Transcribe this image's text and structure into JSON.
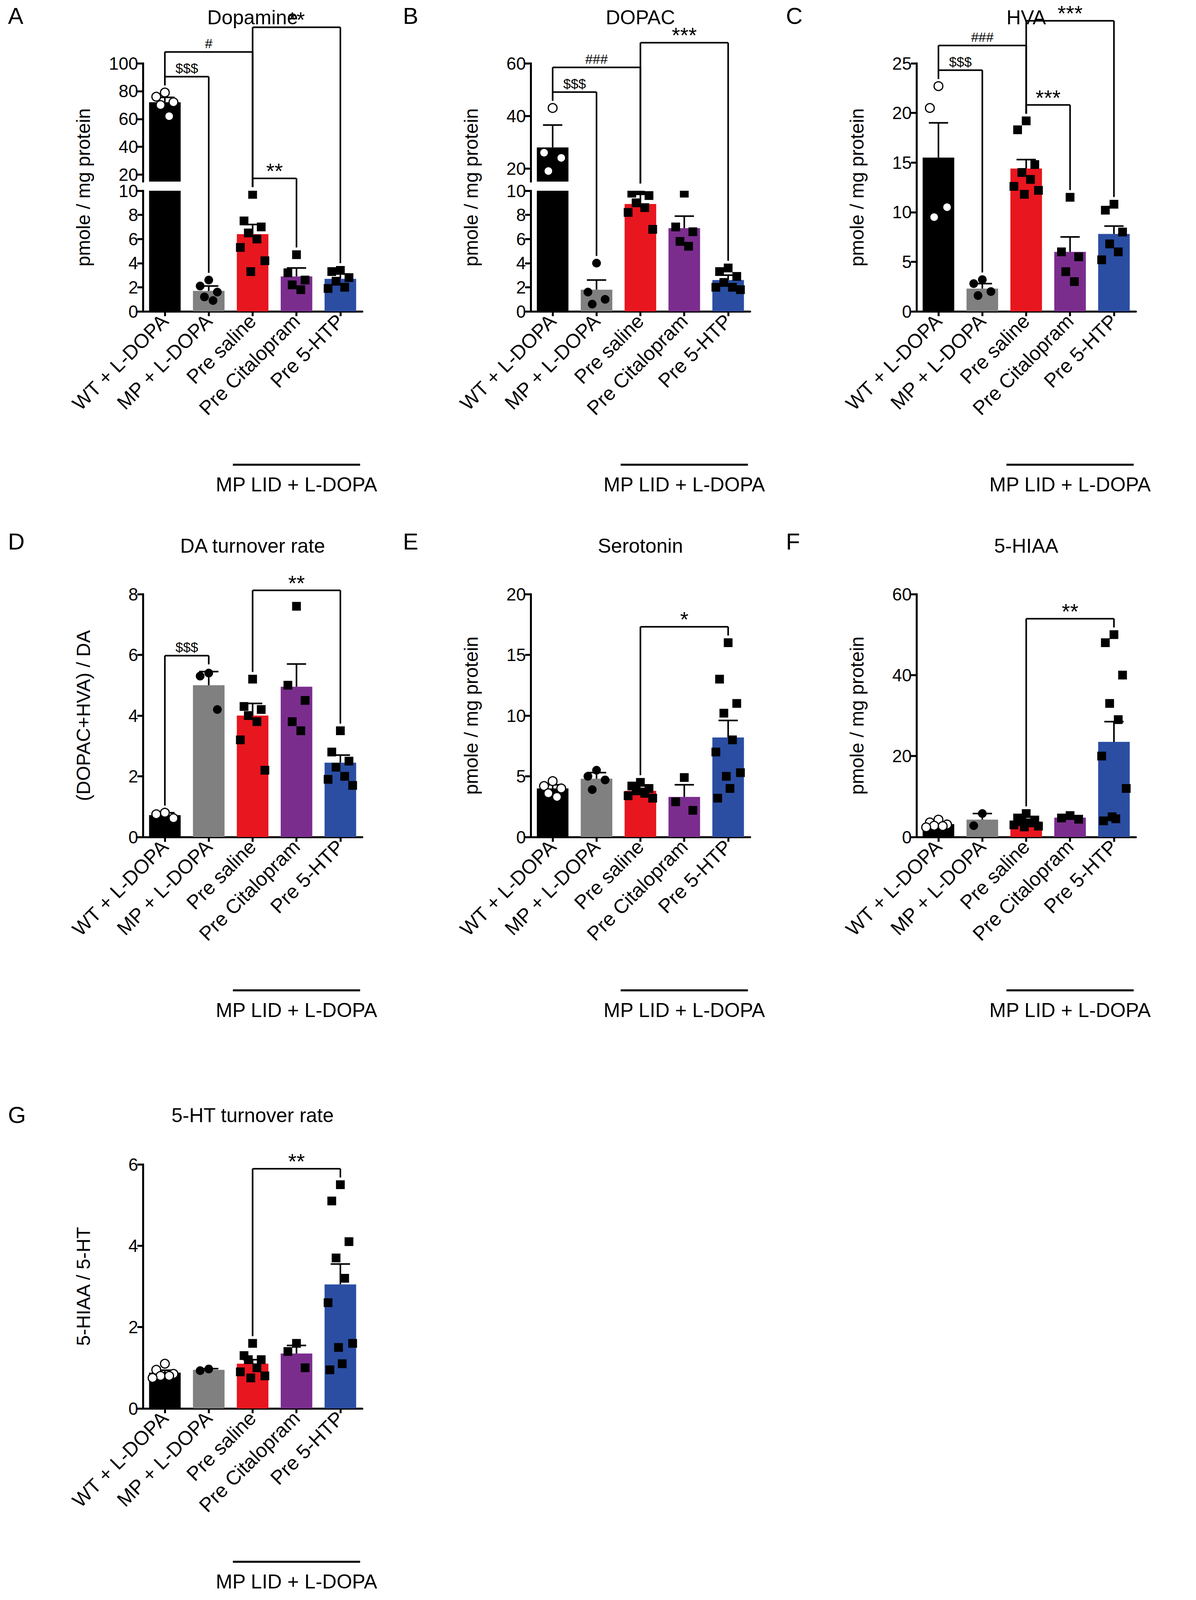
{
  "chart_data": [
    {
      "type": "bar",
      "panel_label": "A",
      "title": "Dopamine",
      "y_label": "pmole / mg protein",
      "categories": [
        "WT + L-DOPA",
        "MP + L-DOPA",
        "Pre saline",
        "Pre Citalopram",
        "Pre 5-HTP"
      ],
      "values": [
        72,
        1.7,
        6.4,
        2.9,
        2.7
      ],
      "errors": [
        3.5,
        0.4,
        0.8,
        0.7,
        0.4
      ],
      "points": [
        [
          79,
          76,
          72,
          70,
          62
        ],
        [
          2.6,
          2.1,
          1.6,
          1.2,
          0.9
        ],
        [
          9.7,
          7.5,
          7.0,
          6.5,
          6.0,
          5.3,
          4.2,
          3.3
        ],
        [
          4.7,
          3.2,
          2.6,
          2.2,
          1.8
        ],
        [
          3.4,
          3.3,
          2.8,
          2.5,
          2.0,
          1.9
        ]
      ],
      "colors": [
        "#000000",
        "#808080",
        "#e8161f",
        "#7b2d8e",
        "#2b4ea2"
      ],
      "markers": [
        "open_circle",
        "circle",
        "square",
        "square",
        "square"
      ],
      "group_label": "MP LID + L-DOPA",
      "group_categories": [
        "Pre saline",
        "Pre Citalopram",
        "Pre 5-HTP"
      ],
      "ylim": [
        0,
        100
      ],
      "yticks": [
        0,
        2,
        4,
        6,
        8,
        10,
        20,
        40,
        60,
        80,
        100
      ],
      "y_break": [
        10,
        15
      ],
      "annotations": [
        {
          "from": "WT + L-DOPA",
          "to": "MP + L-DOPA",
          "text": "$$$"
        },
        {
          "from": "WT + L-DOPA",
          "to": "Pre saline",
          "text": "#"
        },
        {
          "from": "Pre saline",
          "to": "Pre Citalopram",
          "text": "**"
        },
        {
          "from": "Pre saline",
          "to": "Pre 5-HTP",
          "text": "**"
        }
      ],
      "grid": false
    },
    {
      "type": "bar",
      "panel_label": "B",
      "title": "DOPAC",
      "y_label": "pmole / mg protein",
      "categories": [
        "WT + L-DOPA",
        "MP + L-DOPA",
        "Pre saline",
        "Pre Citalopram",
        "Pre 5-HTP"
      ],
      "values": [
        28,
        1.8,
        8.9,
        6.9,
        2.6
      ],
      "errors": [
        8.5,
        0.8,
        0.9,
        1.0,
        0.4
      ],
      "points": [
        [
          43,
          26,
          24,
          19
        ],
        [
          4.0,
          1.6,
          1.0,
          0.6
        ],
        [
          10.0,
          9.8,
          9.6,
          9.0,
          8.6,
          8.2,
          6.8
        ],
        [
          9.8,
          7.0,
          6.6,
          5.8,
          5.4
        ],
        [
          3.6,
          3.3,
          2.9,
          2.4,
          2.0,
          2.0,
          1.8
        ]
      ],
      "colors": [
        "#000000",
        "#808080",
        "#e8161f",
        "#7b2d8e",
        "#2b4ea2"
      ],
      "markers": [
        "open_circle",
        "circle",
        "square",
        "square",
        "square"
      ],
      "group_label": "MP LID + L-DOPA",
      "group_categories": [
        "Pre saline",
        "Pre Citalopram",
        "Pre 5-HTP"
      ],
      "ylim": [
        0,
        60
      ],
      "yticks": [
        0,
        2,
        4,
        6,
        8,
        10,
        20,
        40,
        60
      ],
      "y_break": [
        10,
        15
      ],
      "annotations": [
        {
          "from": "WT + L-DOPA",
          "to": "MP + L-DOPA",
          "text": "$$$"
        },
        {
          "from": "WT + L-DOPA",
          "to": "Pre saline",
          "text": "###"
        },
        {
          "from": "Pre saline",
          "to": "Pre 5-HTP",
          "text": "***"
        }
      ],
      "grid": false
    },
    {
      "type": "bar",
      "panel_label": "C",
      "title": "HVA",
      "y_label": "pmole / mg protein",
      "categories": [
        "WT + L-DOPA",
        "MP + L-DOPA",
        "Pre saline",
        "Pre Citalopram",
        "Pre 5-HTP"
      ],
      "values": [
        15.5,
        2.3,
        14.4,
        6.0,
        7.8
      ],
      "errors": [
        3.5,
        0.5,
        0.9,
        1.5,
        0.8
      ],
      "points": [
        [
          22.7,
          20.5,
          10.5,
          9.5
        ],
        [
          3.2,
          2.8,
          2.0,
          1.6
        ],
        [
          19.2,
          18.3,
          14.8,
          14.0,
          13.3,
          12.6,
          12.2,
          11.8
        ],
        [
          11.5,
          6.0,
          5.5,
          4.0,
          3.0
        ],
        [
          10.8,
          10.2,
          8.0,
          6.8,
          6.0,
          5.2
        ]
      ],
      "colors": [
        "#000000",
        "#808080",
        "#e8161f",
        "#7b2d8e",
        "#2b4ea2"
      ],
      "markers": [
        "open_circle",
        "circle",
        "square",
        "square",
        "square"
      ],
      "group_label": "MP LID + L-DOPA",
      "group_categories": [
        "Pre saline",
        "Pre Citalopram",
        "Pre 5-HTP"
      ],
      "ylim": [
        0,
        25
      ],
      "yticks": [
        0,
        5,
        10,
        15,
        20,
        25
      ],
      "annotations": [
        {
          "from": "WT + L-DOPA",
          "to": "MP + L-DOPA",
          "text": "$$$"
        },
        {
          "from": "WT + L-DOPA",
          "to": "Pre saline",
          "text": "###"
        },
        {
          "from": "Pre saline",
          "to": "Pre Citalopram",
          "text": "***"
        },
        {
          "from": "Pre saline",
          "to": "Pre 5-HTP",
          "text": "***"
        }
      ],
      "grid": false
    },
    {
      "type": "bar",
      "panel_label": "D",
      "title": "DA turnover rate",
      "y_label": "(DOPAC+HVA) / DA",
      "categories": [
        "WT + L-DOPA",
        "MP + L-DOPA",
        "Pre saline",
        "Pre Citalopram",
        "Pre 5-HTP"
      ],
      "values": [
        0.72,
        5.0,
        4.0,
        4.95,
        2.45
      ],
      "errors": [
        0.08,
        0.45,
        0.4,
        0.75,
        0.25
      ],
      "points": [
        [
          0.8,
          0.75,
          0.62
        ],
        [
          5.4,
          5.3,
          4.2
        ],
        [
          5.2,
          4.3,
          4.2,
          4.0,
          3.8,
          3.2,
          2.2
        ],
        [
          7.6,
          5.0,
          4.5,
          3.8,
          3.5
        ],
        [
          3.5,
          2.8,
          2.5,
          2.3,
          2.0,
          1.9,
          1.7
        ]
      ],
      "colors": [
        "#000000",
        "#808080",
        "#e8161f",
        "#7b2d8e",
        "#2b4ea2"
      ],
      "markers": [
        "open_circle",
        "circle",
        "square",
        "square",
        "square"
      ],
      "group_label": "MP LID + L-DOPA",
      "group_categories": [
        "Pre saline",
        "Pre Citalopram",
        "Pre 5-HTP"
      ],
      "ylim": [
        0,
        8
      ],
      "yticks": [
        0,
        2,
        4,
        6,
        8
      ],
      "annotations": [
        {
          "from": "WT + L-DOPA",
          "to": "MP + L-DOPA",
          "text": "$$$"
        },
        {
          "from": "Pre saline",
          "to": "Pre 5-HTP",
          "text": "**"
        }
      ],
      "grid": false
    },
    {
      "type": "bar",
      "panel_label": "E",
      "title": "Serotonin",
      "y_label": "pmole / mg protein",
      "categories": [
        "WT + L-DOPA",
        "MP + L-DOPA",
        "Pre saline",
        "Pre Citalopram",
        "Pre 5-HTP"
      ],
      "values": [
        4.0,
        4.8,
        3.8,
        3.3,
        8.2
      ],
      "errors": [
        0.3,
        0.5,
        0.2,
        1.0,
        1.4
      ],
      "points": [
        [
          4.6,
          4.2,
          4.0,
          3.6,
          3.3
        ],
        [
          5.5,
          5.0,
          4.7,
          3.9
        ],
        [
          4.5,
          4.2,
          4.0,
          3.8,
          3.6,
          3.4,
          3.2
        ],
        [
          4.9,
          2.9,
          2.2
        ],
        [
          16.0,
          13.0,
          11.0,
          10.2,
          8.0,
          7.0,
          5.3,
          5.0,
          4.0,
          3.2
        ]
      ],
      "colors": [
        "#000000",
        "#808080",
        "#e8161f",
        "#7b2d8e",
        "#2b4ea2"
      ],
      "markers": [
        "open_circle",
        "circle",
        "square",
        "square",
        "square"
      ],
      "group_label": "MP LID + L-DOPA",
      "group_categories": [
        "Pre saline",
        "Pre Citalopram",
        "Pre 5-HTP"
      ],
      "ylim": [
        0,
        20
      ],
      "yticks": [
        0,
        5,
        10,
        15,
        20
      ],
      "annotations": [
        {
          "from": "Pre saline",
          "to": "Pre 5-HTP",
          "text": "*"
        }
      ],
      "grid": false
    },
    {
      "type": "bar",
      "panel_label": "F",
      "title": "5-HIAA",
      "y_label": "pmole / mg protein",
      "categories": [
        "WT + L-DOPA",
        "MP + L-DOPA",
        "Pre saline",
        "Pre Citalopram",
        "Pre 5-HTP"
      ],
      "values": [
        3.2,
        4.3,
        3.8,
        4.8,
        23.5
      ],
      "errors": [
        0.4,
        1.5,
        0.4,
        0.3,
        5.0
      ],
      "points": [
        [
          4.3,
          3.6,
          3.1,
          2.8,
          2.7,
          2.4
        ],
        [
          5.8,
          2.8
        ],
        [
          5.8,
          4.7,
          4.2,
          3.8,
          3.5,
          3.0,
          2.7,
          2.5
        ],
        [
          5.3,
          4.7,
          4.4
        ],
        [
          50,
          48,
          40,
          33,
          29,
          20,
          12,
          5,
          4.5,
          4.0
        ]
      ],
      "colors": [
        "#000000",
        "#808080",
        "#e8161f",
        "#7b2d8e",
        "#2b4ea2"
      ],
      "markers": [
        "open_circle",
        "circle",
        "square",
        "square",
        "square"
      ],
      "group_label": "MP LID + L-DOPA",
      "group_categories": [
        "Pre saline",
        "Pre Citalopram",
        "Pre 5-HTP"
      ],
      "ylim": [
        0,
        60
      ],
      "yticks": [
        0,
        20,
        40,
        60
      ],
      "annotations": [
        {
          "from": "Pre saline",
          "to": "Pre 5-HTP",
          "text": "**"
        }
      ],
      "grid": false
    },
    {
      "type": "bar",
      "panel_label": "G",
      "title": "5-HT turnover rate",
      "y_label": "5-HIAA / 5-HT",
      "categories": [
        "WT + L-DOPA",
        "MP + L-DOPA",
        "Pre saline",
        "Pre Citalopram",
        "Pre 5-HTP"
      ],
      "values": [
        0.88,
        0.95,
        1.1,
        1.35,
        3.05
      ],
      "errors": [
        0.06,
        0.03,
        0.1,
        0.2,
        0.5
      ],
      "points": [
        [
          1.1,
          0.95,
          0.85,
          0.8,
          0.8,
          0.75
        ],
        [
          0.97,
          0.93
        ],
        [
          1.6,
          1.3,
          1.2,
          1.2,
          1.0,
          0.9,
          0.8,
          0.75
        ],
        [
          1.6,
          1.4,
          1.0
        ],
        [
          5.5,
          5.1,
          4.1,
          3.7,
          3.2,
          2.6,
          1.6,
          1.5,
          1.1,
          0.95
        ]
      ],
      "colors": [
        "#000000",
        "#808080",
        "#e8161f",
        "#7b2d8e",
        "#2b4ea2"
      ],
      "markers": [
        "open_circle",
        "circle",
        "square",
        "square",
        "square"
      ],
      "group_label": "MP LID + L-DOPA",
      "group_categories": [
        "Pre saline",
        "Pre Citalopram",
        "Pre 5-HTP"
      ],
      "ylim": [
        0,
        6
      ],
      "yticks": [
        0,
        2,
        4,
        6
      ],
      "annotations": [
        {
          "from": "Pre saline",
          "to": "Pre 5-HTP",
          "text": "**"
        }
      ],
      "grid": false
    }
  ]
}
